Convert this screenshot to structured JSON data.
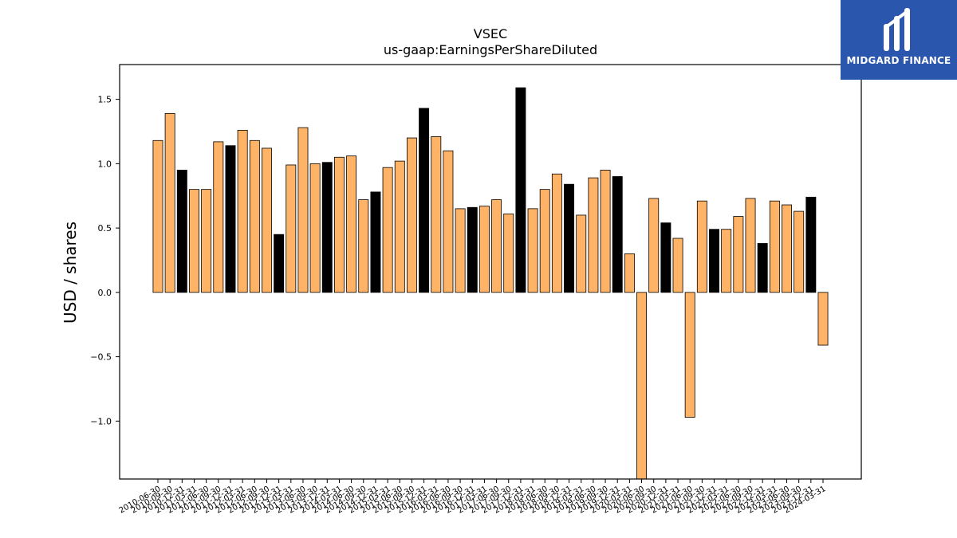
{
  "chart_data": {
    "type": "bar",
    "title": "VSEC",
    "subtitle": "us-gaap:EarningsPerShareDiluted",
    "ylabel": "USD / shares",
    "xlabel": "",
    "ylim": [
      -1.45,
      1.77
    ],
    "yticks": [
      -1.0,
      -0.5,
      0.0,
      0.5,
      1.0,
      1.5
    ],
    "colors": {
      "quarter": "#ffb366",
      "annual": "#000000",
      "edge": "#000000"
    },
    "categories": [
      "2010-06-30",
      "2010-09-30",
      "2010-12-31",
      "2011-03-31",
      "2011-06-30",
      "2011-09-30",
      "2011-12-31",
      "2012-03-31",
      "2012-06-30",
      "2012-09-30",
      "2012-12-31",
      "2013-03-31",
      "2013-06-30",
      "2013-09-30",
      "2013-12-31",
      "2014-03-31",
      "2014-06-30",
      "2014-09-30",
      "2014-12-31",
      "2015-03-31",
      "2015-06-30",
      "2015-09-30",
      "2015-12-31",
      "2016-03-31",
      "2016-06-30",
      "2016-09-30",
      "2016-12-31",
      "2017-03-31",
      "2017-06-30",
      "2017-09-30",
      "2017-12-31",
      "2018-03-31",
      "2018-06-30",
      "2018-09-30",
      "2018-12-31",
      "2019-03-31",
      "2019-06-30",
      "2019-09-30",
      "2019-12-31",
      "2020-03-31",
      "2020-06-30",
      "2020-09-30",
      "2020-12-31",
      "2021-03-31",
      "2021-06-30",
      "2021-09-30",
      "2021-12-31",
      "2022-03-31",
      "2022-06-30",
      "2022-09-30",
      "2022-12-31",
      "2023-03-31",
      "2023-06-30",
      "2023-09-30",
      "2023-12-31",
      "2024-03-31"
    ],
    "values": [
      1.18,
      1.39,
      0.95,
      0.8,
      0.8,
      1.17,
      1.14,
      1.26,
      1.18,
      1.12,
      0.45,
      0.99,
      1.28,
      1.0,
      1.01,
      1.05,
      1.06,
      0.72,
      0.78,
      0.97,
      1.02,
      1.2,
      1.43,
      1.21,
      1.1,
      0.65,
      0.66,
      0.67,
      0.72,
      0.61,
      1.59,
      0.65,
      0.8,
      0.92,
      0.84,
      0.6,
      0.89,
      0.95,
      0.9,
      0.3,
      -1.45,
      0.73,
      0.54,
      0.42,
      -0.97,
      0.71,
      0.49,
      0.49,
      0.59,
      0.73,
      0.38,
      0.71,
      0.68,
      0.63,
      0.74,
      -0.41
    ],
    "annual_flags": [
      0,
      0,
      1,
      0,
      0,
      0,
      1,
      0,
      0,
      0,
      1,
      0,
      0,
      0,
      1,
      0,
      0,
      0,
      1,
      0,
      0,
      0,
      1,
      0,
      0,
      0,
      1,
      0,
      0,
      0,
      1,
      0,
      0,
      0,
      1,
      0,
      0,
      0,
      1,
      0,
      0,
      0,
      1,
      0,
      0,
      0,
      1,
      0,
      0,
      0,
      1,
      0,
      0,
      0,
      1,
      0
    ]
  },
  "logo": {
    "text": "MIDGARD FINANCE",
    "icon": "midgard-logo-icon"
  }
}
